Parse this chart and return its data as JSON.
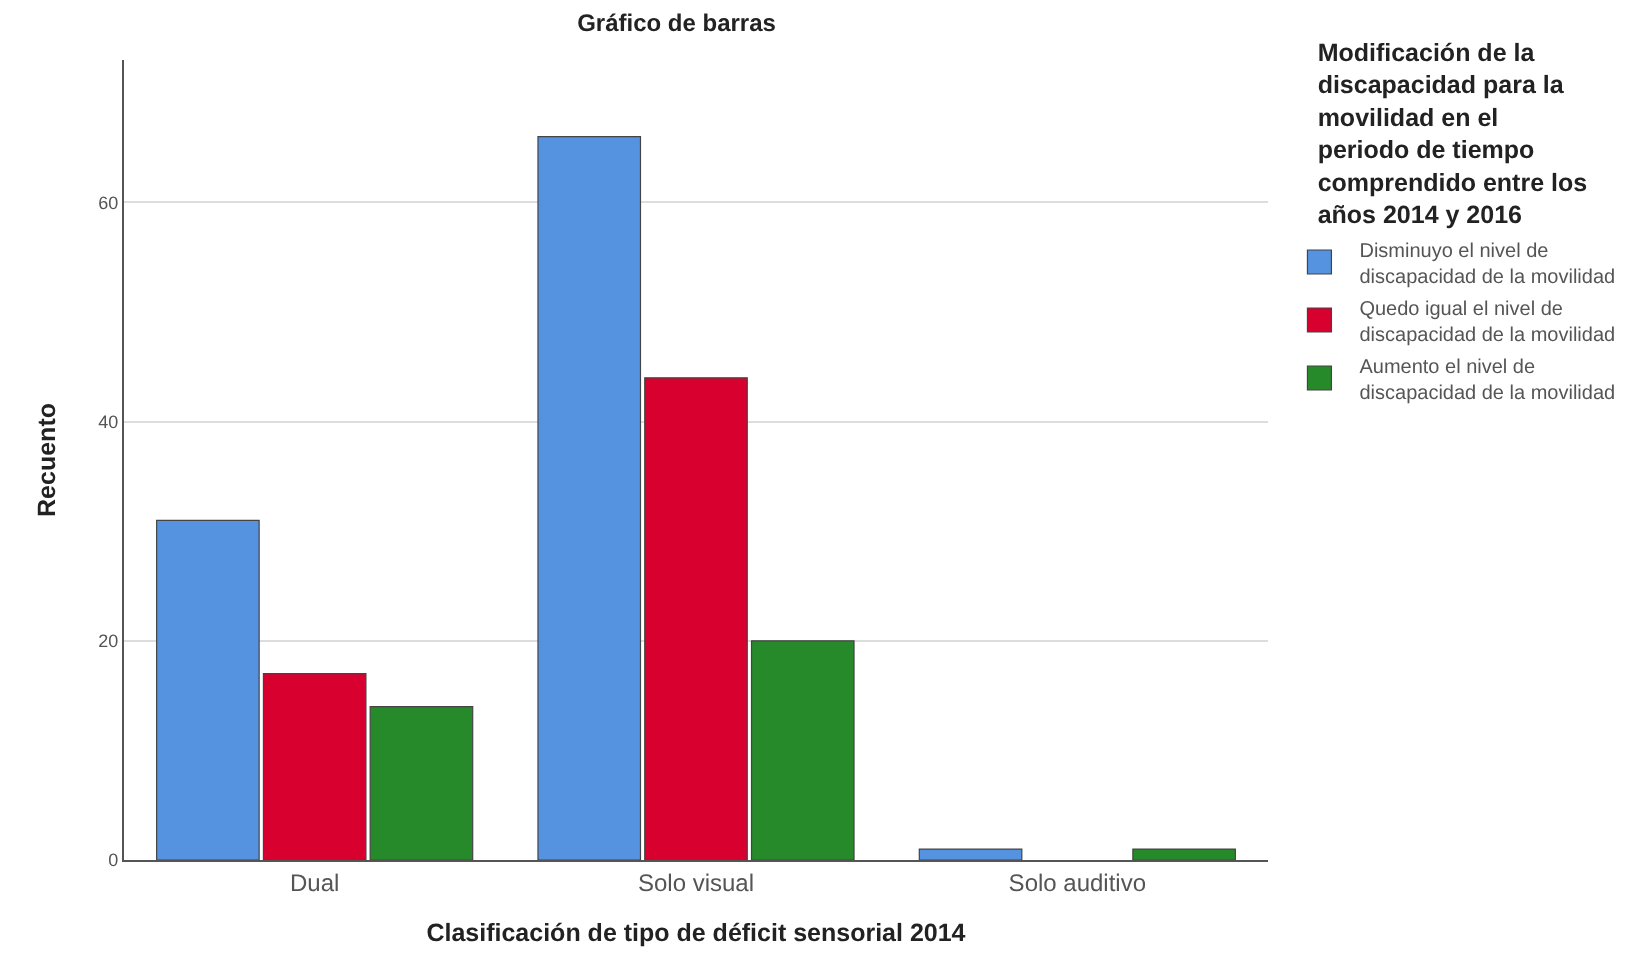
{
  "chart_data": {
    "type": "bar",
    "title": "Gráfico de barras",
    "xlabel": "Clasificación de tipo de déficit sensorial 2014",
    "ylabel": "Recuento",
    "legend_title": "Modificación de la\ndiscapacidad para la\nmovilidad en el\nperiodo de tiempo\ncomprendido entre los\naños 2014 y 2016",
    "categories": [
      "Dual",
      "Solo visual",
      "Solo auditivo"
    ],
    "series": [
      {
        "name": "Disminuyo el nivel de\ndiscapacidad de la movilidad",
        "color": "#5592e0",
        "values": [
          31,
          66,
          1
        ]
      },
      {
        "name": "Quedo igual el nivel de\ndiscapacidad de la movilidad",
        "color": "#d8002f",
        "values": [
          17,
          44,
          null
        ]
      },
      {
        "name": "Aumento el nivel de\ndiscapacidad de la movilidad",
        "color": "#278a2a",
        "values": [
          14,
          20,
          1
        ]
      }
    ],
    "ylim": [
      0,
      73
    ],
    "yticks": [
      0,
      20,
      40,
      60
    ],
    "grid": "y",
    "legend": "right"
  }
}
